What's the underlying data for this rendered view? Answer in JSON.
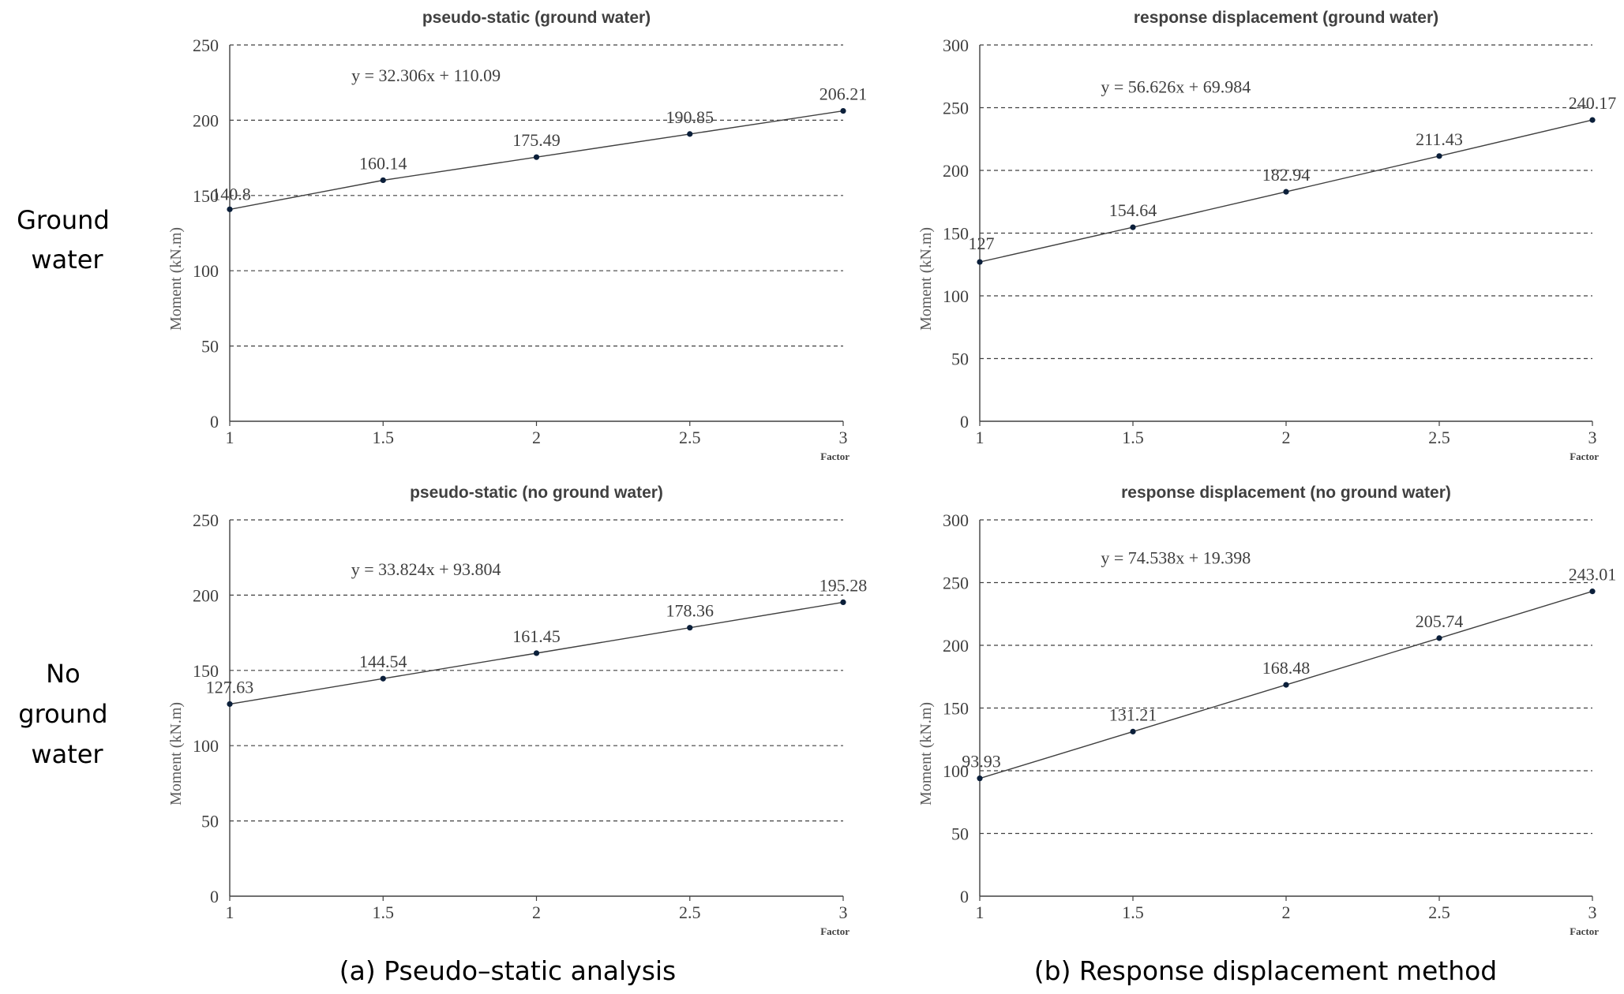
{
  "row_labels": [
    [
      "Ground",
      "water"
    ],
    [
      "No",
      "ground",
      "water"
    ]
  ],
  "captions": [
    "(a) Pseudo–static analysis",
    "(b) Response displacement method"
  ],
  "chart_data": [
    {
      "type": "line",
      "title": "pseudo-static (ground water)",
      "xlabel": "Factor",
      "ylabel": "Moment (kN.m)",
      "x": [
        1,
        1.5,
        2,
        2.5,
        3
      ],
      "xticks": [
        "1",
        "1.5",
        "2",
        "2.5",
        "3"
      ],
      "y": [
        140.8,
        160.14,
        175.49,
        190.85,
        206.21
      ],
      "data_labels": [
        "140.8",
        "160.14",
        "175.49",
        "190.85",
        "206.21"
      ],
      "yticks": [
        0,
        50,
        100,
        150,
        200,
        250
      ],
      "ylim": [
        0,
        250
      ],
      "xlim": [
        1,
        3
      ],
      "trendline": {
        "slope": 32.306,
        "intercept": 110.09,
        "label": "y = 32.306x + 110.09"
      },
      "grid": "horizontal dashed"
    },
    {
      "type": "line",
      "title": "response displacement (ground water)",
      "xlabel": "Factor",
      "ylabel": "Moment (kN.m)",
      "x": [
        1,
        1.5,
        2,
        2.5,
        3
      ],
      "xticks": [
        "1",
        "1.5",
        "2",
        "2.5",
        "3"
      ],
      "y": [
        127,
        154.64,
        182.94,
        211.43,
        240.17
      ],
      "data_labels": [
        "127",
        "154.64",
        "182.94",
        "211.43",
        "240.17"
      ],
      "yticks": [
        0,
        50,
        100,
        150,
        200,
        250,
        300
      ],
      "ylim": [
        0,
        300
      ],
      "xlim": [
        1,
        3
      ],
      "trendline": {
        "slope": 56.626,
        "intercept": 69.984,
        "label": "y = 56.626x + 69.984"
      },
      "grid": "horizontal dashed"
    },
    {
      "type": "line",
      "title": "pseudo-static (no ground water)",
      "xlabel": "Factor",
      "ylabel": "Moment (kN.m)",
      "x": [
        1,
        1.5,
        2,
        2.5,
        3
      ],
      "xticks": [
        "1",
        "1.5",
        "2",
        "2.5",
        "3"
      ],
      "y": [
        127.63,
        144.54,
        161.45,
        178.36,
        195.28
      ],
      "data_labels": [
        "127.63",
        "144.54",
        "161.45",
        "178.36",
        "195.28"
      ],
      "yticks": [
        0,
        50,
        100,
        150,
        200,
        250
      ],
      "ylim": [
        0,
        250
      ],
      "xlim": [
        1,
        3
      ],
      "trendline": {
        "slope": 33.824,
        "intercept": 93.804,
        "label": "y = 33.824x + 93.804"
      },
      "grid": "horizontal dashed"
    },
    {
      "type": "line",
      "title": "response displacement (no ground water)",
      "xlabel": "Factor",
      "ylabel": "Moment (kN.m)",
      "x": [
        1,
        1.5,
        2,
        2.5,
        3
      ],
      "xticks": [
        "1",
        "1.5",
        "2",
        "2.5",
        "3"
      ],
      "y": [
        93.93,
        131.21,
        168.48,
        205.74,
        243.01
      ],
      "data_labels": [
        "93.93",
        "131.21",
        "168.48",
        "205.74",
        "243.01"
      ],
      "yticks": [
        0,
        50,
        100,
        150,
        200,
        250,
        300
      ],
      "ylim": [
        0,
        300
      ],
      "xlim": [
        1,
        3
      ],
      "trendline": {
        "slope": 74.538,
        "intercept": 19.398,
        "label": "y = 74.538x + 19.398"
      },
      "grid": "horizontal dashed"
    }
  ],
  "colors": {
    "line": "#404040",
    "marker": "#0b1f3a",
    "grid": "#404040",
    "text": "#404040"
  }
}
